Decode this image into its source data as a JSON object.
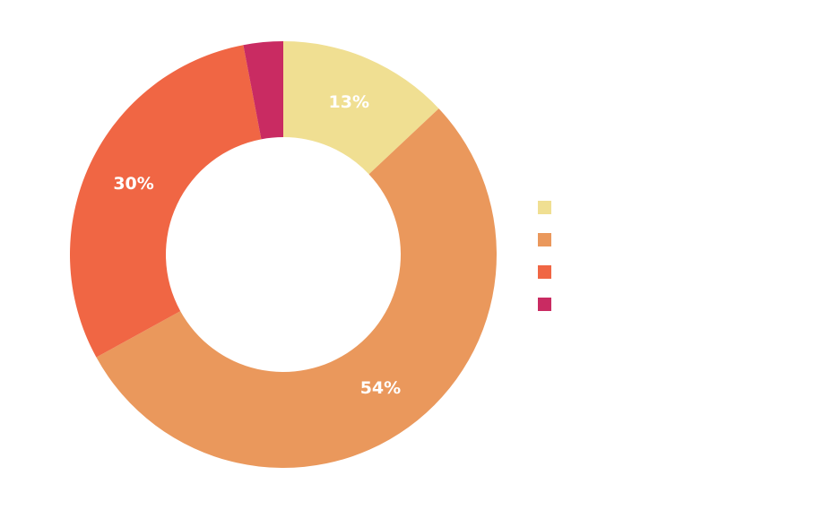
{
  "chart_data": {
    "type": "pie",
    "donut": true,
    "title": "",
    "slices": [
      {
        "name": "",
        "value": 13,
        "label": "13%",
        "color": "#F0DF92"
      },
      {
        "name": "",
        "value": 54,
        "label": "54%",
        "color": "#EA985C"
      },
      {
        "name": "",
        "value": 30,
        "label": "30%",
        "color": "#F06644"
      },
      {
        "name": "",
        "value": 3,
        "label": "",
        "color": "#C92B62"
      }
    ],
    "legend_position": "right",
    "start_angle_deg": 0,
    "direction": "clockwise"
  }
}
